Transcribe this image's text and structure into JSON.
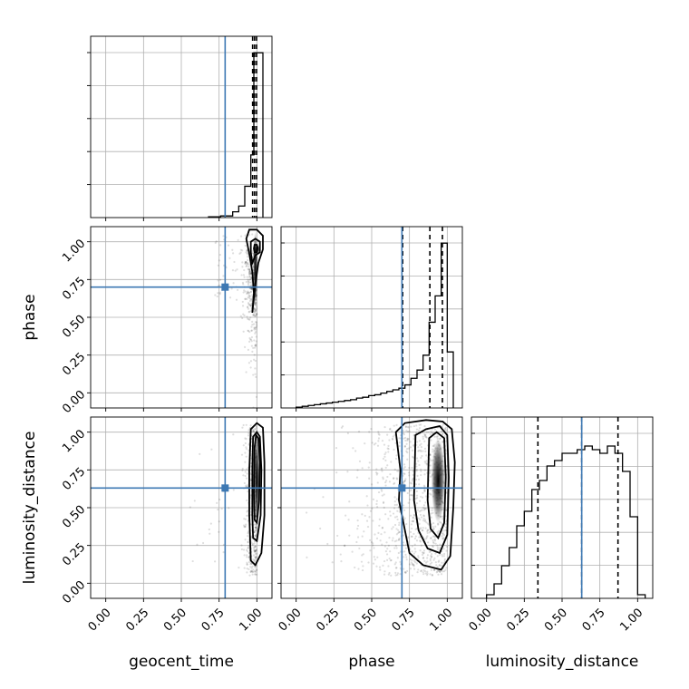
{
  "chart_data": {
    "type": "corner",
    "parameters": [
      "geocent_time",
      "phase",
      "luminosity_distance"
    ],
    "tick_labels": [
      "0.00",
      "0.25",
      "0.50",
      "0.75",
      "1.00"
    ],
    "range": [
      -0.1,
      1.1
    ],
    "truths": {
      "geocent_time": 0.79,
      "phase": 0.7,
      "luminosity_distance": 0.63
    },
    "colors": {
      "truth": "#3d78b3",
      "hist": "#000000",
      "density": "#000000"
    },
    "grid": true,
    "marginals": {
      "geocent_time": {
        "bin_edges": [
          0.68,
          0.76,
          0.84,
          0.88,
          0.92,
          0.96,
          0.98,
          1.0,
          1.04
        ],
        "counts": [
          0.005,
          0.01,
          0.035,
          0.07,
          0.19,
          0.38,
          1.0,
          1.0
        ],
        "ymax": 1.1,
        "quantiles": [
          0.972,
          0.985,
          0.998
        ]
      },
      "phase": {
        "bin_edges": [
          0.0,
          0.04,
          0.08,
          0.12,
          0.16,
          0.2,
          0.24,
          0.28,
          0.32,
          0.36,
          0.4,
          0.44,
          0.48,
          0.52,
          0.56,
          0.6,
          0.64,
          0.68,
          0.72,
          0.76,
          0.8,
          0.84,
          0.88,
          0.92,
          0.96,
          1.0,
          1.04
        ],
        "counts": [
          0.005,
          0.01,
          0.015,
          0.02,
          0.025,
          0.03,
          0.035,
          0.04,
          0.045,
          0.05,
          0.06,
          0.065,
          0.075,
          0.08,
          0.09,
          0.1,
          0.11,
          0.12,
          0.14,
          0.18,
          0.23,
          0.32,
          0.52,
          0.68,
          1.0,
          0.34
        ],
        "ymax": 1.1,
        "quantiles": [
          0.705,
          0.885,
          0.968
        ]
      },
      "luminosity_distance": {
        "bin_edges": [
          0.0,
          0.05,
          0.1,
          0.15,
          0.2,
          0.25,
          0.3,
          0.35,
          0.4,
          0.45,
          0.5,
          0.55,
          0.6,
          0.65,
          0.7,
          0.75,
          0.8,
          0.85,
          0.9,
          0.95,
          1.0,
          1.05
        ],
        "counts": [
          0.02,
          0.08,
          0.18,
          0.28,
          0.4,
          0.48,
          0.6,
          0.65,
          0.73,
          0.76,
          0.8,
          0.8,
          0.82,
          0.84,
          0.82,
          0.8,
          0.84,
          0.8,
          0.7,
          0.45,
          0.02
        ],
        "ymax": 1.0,
        "quantiles": [
          0.34,
          0.63,
          0.87
        ]
      }
    },
    "joint": [
      {
        "x": "geocent_time",
        "y": "phase",
        "contours": [
          [
            [
              0.97,
              0.53
            ],
            [
              0.99,
              0.72
            ],
            [
              1.01,
              0.86
            ],
            [
              1.04,
              0.95
            ],
            [
              1.04,
              1.04
            ],
            [
              1.0,
              1.08
            ],
            [
              0.95,
              1.08
            ],
            [
              0.93,
              1.02
            ],
            [
              0.95,
              0.92
            ],
            [
              0.97,
              0.8
            ],
            [
              0.98,
              0.66
            ],
            [
              0.97,
              0.53
            ]
          ],
          [
            [
              0.97,
              0.86
            ],
            [
              0.99,
              0.91
            ],
            [
              1.02,
              0.93
            ],
            [
              1.02,
              1.0
            ],
            [
              0.99,
              1.02
            ],
            [
              0.96,
              1.0
            ],
            [
              0.96,
              0.93
            ],
            [
              0.97,
              0.86
            ]
          ],
          [
            [
              0.985,
              0.93
            ],
            [
              1.0,
              0.93
            ],
            [
              1.005,
              0.96
            ],
            [
              1.0,
              0.98
            ],
            [
              0.985,
              0.98
            ],
            [
              0.98,
              0.955
            ],
            [
              0.985,
              0.93
            ]
          ]
        ],
        "density_cores": [
          [
            1.0,
            0.95,
            0.025,
            0.03
          ],
          [
            0.99,
            0.82,
            0.015,
            0.25
          ]
        ]
      },
      {
        "x": "geocent_time",
        "y": "luminosity_distance",
        "contours": [
          [
            [
              0.96,
              0.15
            ],
            [
              0.99,
              0.12
            ],
            [
              1.03,
              0.2
            ],
            [
              1.05,
              0.45
            ],
            [
              1.05,
              0.8
            ],
            [
              1.04,
              1.03
            ],
            [
              1.0,
              1.06
            ],
            [
              0.96,
              1.02
            ],
            [
              0.95,
              0.75
            ],
            [
              0.95,
              0.45
            ],
            [
              0.96,
              0.15
            ]
          ],
          [
            [
              0.975,
              0.3
            ],
            [
              1.0,
              0.28
            ],
            [
              1.025,
              0.45
            ],
            [
              1.03,
              0.75
            ],
            [
              1.02,
              0.97
            ],
            [
              1.0,
              1.0
            ],
            [
              0.975,
              0.97
            ],
            [
              0.97,
              0.75
            ],
            [
              0.97,
              0.45
            ],
            [
              0.975,
              0.3
            ]
          ],
          [
            [
              0.985,
              0.42
            ],
            [
              1.0,
              0.4
            ],
            [
              1.015,
              0.55
            ],
            [
              1.02,
              0.8
            ],
            [
              1.01,
              0.96
            ],
            [
              0.995,
              0.98
            ],
            [
              0.985,
              0.9
            ],
            [
              0.98,
              0.6
            ],
            [
              0.985,
              0.42
            ]
          ]
        ],
        "density_cores": [
          [
            1.0,
            0.68,
            0.02,
            0.3
          ]
        ]
      },
      {
        "x": "phase",
        "y": "luminosity_distance",
        "contours": [
          [
            [
              0.66,
              1.0
            ],
            [
              0.72,
              1.06
            ],
            [
              0.86,
              1.08
            ],
            [
              0.97,
              1.07
            ],
            [
              1.03,
              1.02
            ],
            [
              1.05,
              0.8
            ],
            [
              1.04,
              0.5
            ],
            [
              1.02,
              0.18
            ],
            [
              0.96,
              0.09
            ],
            [
              0.84,
              0.12
            ],
            [
              0.75,
              0.2
            ],
            [
              0.72,
              0.35
            ],
            [
              0.68,
              0.55
            ],
            [
              0.69,
              0.75
            ],
            [
              0.66,
              1.0
            ]
          ],
          [
            [
              0.79,
              0.98
            ],
            [
              0.86,
              1.02
            ],
            [
              0.95,
              1.04
            ],
            [
              1.0,
              0.98
            ],
            [
              1.01,
              0.7
            ],
            [
              1.0,
              0.32
            ],
            [
              0.95,
              0.2
            ],
            [
              0.87,
              0.23
            ],
            [
              0.81,
              0.35
            ],
            [
              0.78,
              0.55
            ],
            [
              0.79,
              0.98
            ]
          ],
          [
            [
              0.88,
              0.96
            ],
            [
              0.93,
              1.0
            ],
            [
              0.98,
              0.96
            ],
            [
              0.99,
              0.7
            ],
            [
              0.98,
              0.4
            ],
            [
              0.94,
              0.3
            ],
            [
              0.89,
              0.36
            ],
            [
              0.87,
              0.55
            ],
            [
              0.88,
              0.96
            ]
          ]
        ],
        "density_cores": [
          [
            0.94,
            0.68,
            0.045,
            0.28
          ]
        ]
      }
    ]
  }
}
